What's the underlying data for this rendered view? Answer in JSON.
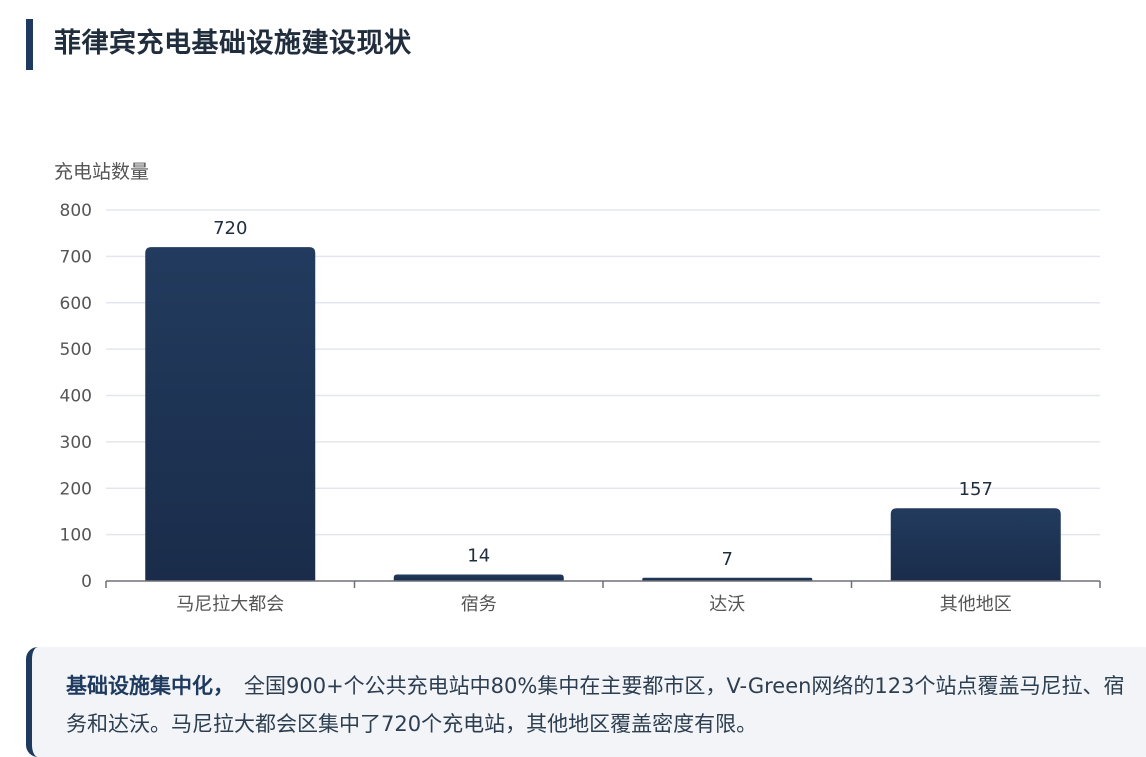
{
  "header": {
    "title": "菲律宾充电基础设施建设现状"
  },
  "chart_data": {
    "type": "bar",
    "title": "",
    "ylabel": "充电站数量",
    "xlabel": "",
    "categories": [
      "马尼拉大都会",
      "宿务",
      "达沃",
      "其他地区"
    ],
    "values": [
      720,
      14,
      7,
      157
    ],
    "data_labels": [
      "720",
      "14",
      "7",
      "157"
    ],
    "ylim": [
      0,
      800
    ],
    "yticks": [
      0,
      100,
      200,
      300,
      400,
      500,
      600,
      700,
      800
    ],
    "grid": true,
    "legend": "none",
    "colors": {
      "bar_top": "#223b5e",
      "bar_bottom": "#1a2c4a",
      "grid": "#e3e7ed",
      "axis": "#6e7079",
      "tick_label": "#555555",
      "data_label": "#1f2d3d"
    }
  },
  "insight": {
    "heading": "基础设施集中化，",
    "body": "全国900+个公共充电站中80%集中在主要都市区，V-Green网络的123个站点覆盖马尼拉、宿务和达沃。马尼拉大都会区集中了720个充电站，其他地区覆盖密度有限。"
  }
}
